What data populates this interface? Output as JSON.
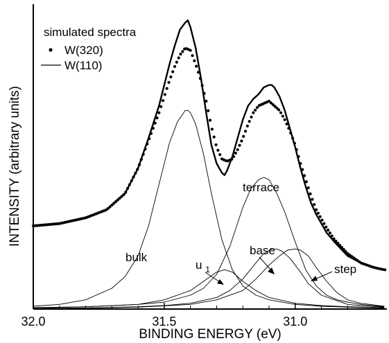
{
  "chart_data": {
    "type": "line",
    "xlabel": "BINDING ENERGY (eV)",
    "ylabel": "INTENSITY (arbitrary units)",
    "xlim": [
      32.0,
      30.65
    ],
    "x_reversed": true,
    "y_ticks_shown": false,
    "grid": false,
    "x_ticks": [
      32.0,
      31.5,
      31.0
    ],
    "x_tick_labels": [
      "32.0",
      "31.5",
      "31.0"
    ],
    "legend": {
      "title": "simulated spectra",
      "placement": "top-left",
      "entries": [
        {
          "label": "W(320)",
          "marker": "dot"
        },
        {
          "label": "W(110)",
          "marker": "line"
        }
      ]
    },
    "series": [
      {
        "name": "W(320)",
        "style": "dots",
        "x": [
          32.0,
          31.9,
          31.8,
          31.72,
          31.65,
          31.6,
          31.56,
          31.52,
          31.5,
          31.48,
          31.46,
          31.44,
          31.42,
          31.4,
          31.38,
          31.36,
          31.34,
          31.32,
          31.3,
          31.28,
          31.26,
          31.24,
          31.22,
          31.2,
          31.18,
          31.16,
          31.14,
          31.12,
          31.1,
          31.08,
          31.06,
          31.04,
          31.02,
          31.0,
          30.98,
          30.96,
          30.94,
          30.92,
          30.9,
          30.88,
          30.85,
          30.8,
          30.75,
          30.7,
          30.66
        ],
        "y": [
          0.36,
          0.37,
          0.395,
          0.43,
          0.5,
          0.61,
          0.73,
          0.85,
          0.92,
          0.99,
          1.05,
          1.1,
          1.13,
          1.12,
          1.06,
          0.99,
          0.9,
          0.79,
          0.7,
          0.65,
          0.64,
          0.65,
          0.69,
          0.74,
          0.8,
          0.85,
          0.88,
          0.89,
          0.9,
          0.88,
          0.86,
          0.82,
          0.77,
          0.71,
          0.63,
          0.56,
          0.49,
          0.43,
          0.39,
          0.35,
          0.3,
          0.24,
          0.2,
          0.18,
          0.17
        ]
      },
      {
        "name": "W(110)",
        "style": "thick-line",
        "x": [
          32.0,
          31.9,
          31.8,
          31.72,
          31.65,
          31.6,
          31.56,
          31.52,
          31.5,
          31.48,
          31.46,
          31.44,
          31.42,
          31.41,
          31.4,
          31.38,
          31.36,
          31.34,
          31.32,
          31.3,
          31.28,
          31.27,
          31.26,
          31.24,
          31.22,
          31.2,
          31.18,
          31.16,
          31.14,
          31.12,
          31.1,
          31.09,
          31.08,
          31.06,
          31.04,
          31.02,
          31.0,
          30.98,
          30.96,
          30.94,
          30.92,
          30.9,
          30.88,
          30.85,
          30.8,
          30.75,
          30.7,
          30.66
        ],
        "y": [
          0.36,
          0.37,
          0.395,
          0.43,
          0.5,
          0.61,
          0.74,
          0.88,
          0.97,
          1.06,
          1.14,
          1.21,
          1.24,
          1.25,
          1.22,
          1.13,
          1.0,
          0.85,
          0.71,
          0.63,
          0.59,
          0.58,
          0.6,
          0.66,
          0.74,
          0.82,
          0.88,
          0.91,
          0.93,
          0.96,
          0.97,
          0.97,
          0.96,
          0.92,
          0.86,
          0.78,
          0.7,
          0.61,
          0.53,
          0.46,
          0.41,
          0.37,
          0.33,
          0.29,
          0.23,
          0.2,
          0.18,
          0.17
        ]
      },
      {
        "name": "bulk",
        "style": "thin-line",
        "x": [
          32.0,
          31.9,
          31.8,
          31.7,
          31.65,
          31.6,
          31.56,
          31.52,
          31.48,
          31.45,
          31.42,
          31.41,
          31.4,
          31.38,
          31.35,
          31.32,
          31.28,
          31.24,
          31.2,
          31.15,
          31.1,
          31.0,
          30.9,
          30.8,
          30.66
        ],
        "y": [
          0.012,
          0.02,
          0.04,
          0.09,
          0.14,
          0.23,
          0.36,
          0.54,
          0.72,
          0.81,
          0.86,
          0.86,
          0.85,
          0.8,
          0.67,
          0.5,
          0.3,
          0.17,
          0.1,
          0.06,
          0.04,
          0.02,
          0.012,
          0.008,
          0.004
        ]
      },
      {
        "name": "terrace",
        "style": "thin-line",
        "x": [
          32.0,
          31.8,
          31.6,
          31.5,
          31.4,
          31.35,
          31.3,
          31.25,
          31.2,
          31.17,
          31.14,
          31.12,
          31.1,
          31.07,
          31.04,
          31.0,
          30.96,
          30.92,
          30.88,
          30.84,
          30.8,
          30.75,
          30.66
        ],
        "y": [
          0.006,
          0.01,
          0.02,
          0.03,
          0.06,
          0.09,
          0.15,
          0.27,
          0.44,
          0.52,
          0.56,
          0.57,
          0.56,
          0.5,
          0.42,
          0.29,
          0.17,
          0.1,
          0.06,
          0.04,
          0.03,
          0.02,
          0.01
        ]
      },
      {
        "name": "base",
        "style": "thin-line",
        "x": [
          32.0,
          31.8,
          31.6,
          31.5,
          31.4,
          31.3,
          31.25,
          31.2,
          31.15,
          31.12,
          31.09,
          31.07,
          31.05,
          31.02,
          30.98,
          30.95,
          30.9,
          30.85,
          30.8,
          30.75,
          30.66
        ],
        "y": [
          0.002,
          0.005,
          0.01,
          0.015,
          0.025,
          0.05,
          0.08,
          0.13,
          0.2,
          0.24,
          0.26,
          0.26,
          0.25,
          0.22,
          0.16,
          0.11,
          0.06,
          0.04,
          0.02,
          0.015,
          0.008
        ]
      },
      {
        "name": "step",
        "style": "thin-line",
        "x": [
          32.0,
          31.8,
          31.6,
          31.4,
          31.3,
          31.2,
          31.15,
          31.1,
          31.06,
          31.03,
          31.0,
          30.98,
          30.95,
          30.92,
          30.88,
          30.84,
          30.8,
          30.75,
          30.66
        ],
        "y": [
          0.002,
          0.004,
          0.008,
          0.02,
          0.04,
          0.08,
          0.13,
          0.19,
          0.23,
          0.255,
          0.26,
          0.255,
          0.23,
          0.18,
          0.12,
          0.07,
          0.04,
          0.025,
          0.012
        ]
      },
      {
        "name": "u1",
        "style": "thin-line",
        "x": [
          32.0,
          31.8,
          31.6,
          31.5,
          31.45,
          31.4,
          31.35,
          31.3,
          31.27,
          31.24,
          31.2,
          31.15,
          31.1,
          31.0,
          30.9,
          30.8,
          30.66
        ],
        "y": [
          0.004,
          0.01,
          0.02,
          0.04,
          0.06,
          0.08,
          0.12,
          0.16,
          0.17,
          0.16,
          0.12,
          0.08,
          0.05,
          0.025,
          0.015,
          0.01,
          0.006
        ]
      }
    ],
    "annotations": [
      {
        "text": "bulk",
        "target": "bulk",
        "arrow": false
      },
      {
        "text": "terrace",
        "target": "terrace",
        "arrow": false
      },
      {
        "text": "u",
        "subscript": "1",
        "target": "u1",
        "arrow": true
      },
      {
        "text": "base",
        "target": "base",
        "arrow": true
      },
      {
        "text": "step",
        "target": "step",
        "arrow": true
      }
    ]
  }
}
